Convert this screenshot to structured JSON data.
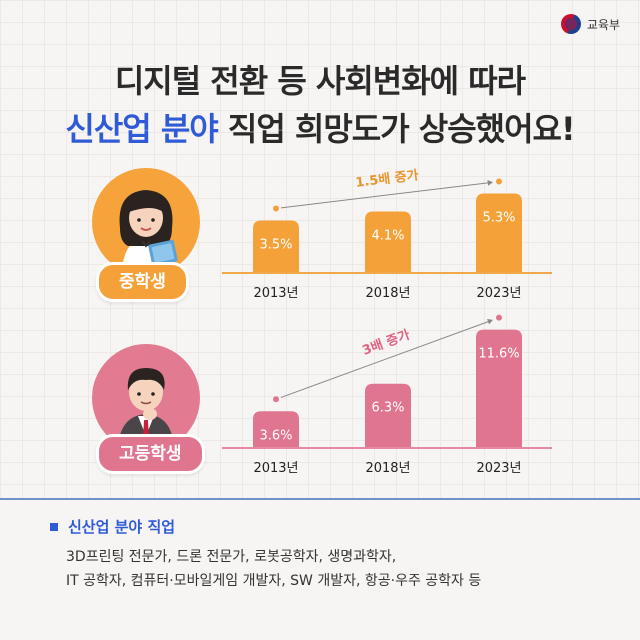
{
  "ministry": {
    "name": "교육부",
    "icon": "ministry-emblem-icon"
  },
  "title": {
    "line1": "디지털 전환 등 사회변화에 따라",
    "line2_highlight": "신산업 분야",
    "line2_rest": " 직업 희망도가 상승했어요!"
  },
  "colors": {
    "highlight": "#2f5bd6",
    "middle_school": "#f4a13a",
    "high_school": "#e07590",
    "axis_middle": "#f0a84a",
    "axis_high": "#e58aa0",
    "growth_text_middle": "#e8962e",
    "growth_text_high": "#e06383"
  },
  "chart_data": [
    {
      "type": "bar",
      "group": "중학생",
      "categories": [
        "2013년",
        "2018년",
        "2023년"
      ],
      "values": [
        3.5,
        4.1,
        5.3
      ],
      "value_labels": [
        "3.5%",
        "4.1%",
        "5.3%"
      ],
      "annotation": "1.5배 증가",
      "unit": "%"
    },
    {
      "type": "bar",
      "group": "고등학생",
      "categories": [
        "2013년",
        "2018년",
        "2023년"
      ],
      "values": [
        3.6,
        6.3,
        11.6
      ],
      "value_labels": [
        "3.6%",
        "6.3%",
        "11.6%"
      ],
      "annotation": "3배 증가",
      "unit": "%"
    }
  ],
  "info": {
    "heading": "신산업 분야 직업",
    "line1": "3D프린팅 전문가, 드론 전문가, 로봇공학자, 생명과학자,",
    "line2": "IT 공학자, 컴퓨터·모바일게임 개발자, SW 개발자, 항공·우주 공학자 등"
  }
}
